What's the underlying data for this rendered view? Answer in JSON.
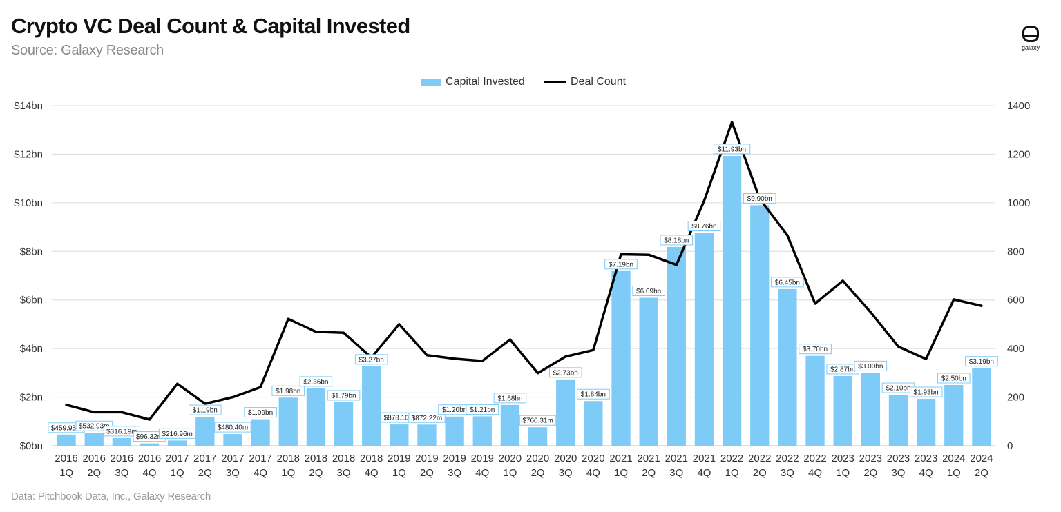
{
  "title": "Crypto VC Deal Count & Capital Invested",
  "subtitle": "Source: Galaxy Research",
  "footer": "Data: Pitchbook Data, Inc., Galaxy Research",
  "logo": {
    "icon": "galaxy-logo-icon",
    "text": "galaxy"
  },
  "chart_data": {
    "type": "bar",
    "legend": [
      "Capital Invested",
      "Deal Count"
    ],
    "legend_position": "top-center",
    "grid": true,
    "colors": {
      "bar": "#7fcbf7",
      "line": "#000000",
      "label_border": "#7fcbf7"
    },
    "y_left": {
      "ticks": [
        "$0bn",
        "$2bn",
        "$4bn",
        "$6bn",
        "$8bn",
        "$10bn",
        "$12bn",
        "$14bn"
      ],
      "range": [
        0,
        14
      ]
    },
    "y_right": {
      "ticks": [
        "0",
        "200",
        "400",
        "600",
        "800",
        "1000",
        "1200",
        "1400"
      ],
      "range": [
        0,
        1400
      ]
    },
    "categories": [
      [
        "2016",
        "1Q"
      ],
      [
        "2016",
        "2Q"
      ],
      [
        "2016",
        "3Q"
      ],
      [
        "2016",
        "4Q"
      ],
      [
        "2017",
        "1Q"
      ],
      [
        "2017",
        "2Q"
      ],
      [
        "2017",
        "3Q"
      ],
      [
        "2017",
        "4Q"
      ],
      [
        "2018",
        "1Q"
      ],
      [
        "2018",
        "2Q"
      ],
      [
        "2018",
        "3Q"
      ],
      [
        "2018",
        "4Q"
      ],
      [
        "2019",
        "1Q"
      ],
      [
        "2019",
        "2Q"
      ],
      [
        "2019",
        "3Q"
      ],
      [
        "2019",
        "4Q"
      ],
      [
        "2020",
        "1Q"
      ],
      [
        "2020",
        "2Q"
      ],
      [
        "2020",
        "3Q"
      ],
      [
        "2020",
        "4Q"
      ],
      [
        "2021",
        "1Q"
      ],
      [
        "2021",
        "2Q"
      ],
      [
        "2021",
        "3Q"
      ],
      [
        "2021",
        "4Q"
      ],
      [
        "2022",
        "1Q"
      ],
      [
        "2022",
        "2Q"
      ],
      [
        "2022",
        "3Q"
      ],
      [
        "2022",
        "4Q"
      ],
      [
        "2023",
        "1Q"
      ],
      [
        "2023",
        "2Q"
      ],
      [
        "2023",
        "3Q"
      ],
      [
        "2023",
        "4Q"
      ],
      [
        "2024",
        "1Q"
      ],
      [
        "2024",
        "2Q"
      ]
    ],
    "series": [
      {
        "name": "Capital Invested",
        "type": "bar",
        "axis": "left",
        "values": [
          0.45995,
          0.53293,
          0.31619,
          0.09632,
          0.21696,
          1.19,
          0.4804,
          1.09,
          1.98,
          2.36,
          1.79,
          3.27,
          0.8781,
          0.87222,
          1.2,
          1.21,
          1.68,
          0.76031,
          2.73,
          1.84,
          7.19,
          6.09,
          8.18,
          8.76,
          11.93,
          9.9,
          6.45,
          3.7,
          2.87,
          3.0,
          2.1,
          1.93,
          2.5,
          3.19
        ],
        "labels": [
          "$459.95m",
          "$532.93m",
          "$316.19m",
          "$96.32m",
          "$216.96m",
          "$1.19bn",
          "$480.40m",
          "$1.09bn",
          "$1.98bn",
          "$2.36bn",
          "$1.79bn",
          "$3.27bn",
          "$878.10m",
          "$872.22m",
          "$1.20bn",
          "$1.21bn",
          "$1.68bn",
          "$760.31m",
          "$2.73bn",
          "$1.84bn",
          "$7.19bn",
          "$6.09bn",
          "$8.18bn",
          "$8.76bn",
          "$11.93bn",
          "$9.90bn",
          "$6.45bn",
          "$3.70bn",
          "$2.87bn",
          "$3.00bn",
          "$2.10bn",
          "$1.93bn",
          "$2.50bn",
          "$3.19bn"
        ]
      },
      {
        "name": "Deal Count",
        "type": "line",
        "axis": "right",
        "values": [
          168,
          138,
          138,
          108,
          255,
          173,
          200,
          241,
          522,
          469,
          465,
          363,
          500,
          373,
          358,
          349,
          437,
          299,
          367,
          394,
          788,
          786,
          745,
          1009,
          1332,
          1016,
          866,
          585,
          679,
          550,
          408,
          357,
          602,
          576
        ]
      }
    ]
  }
}
